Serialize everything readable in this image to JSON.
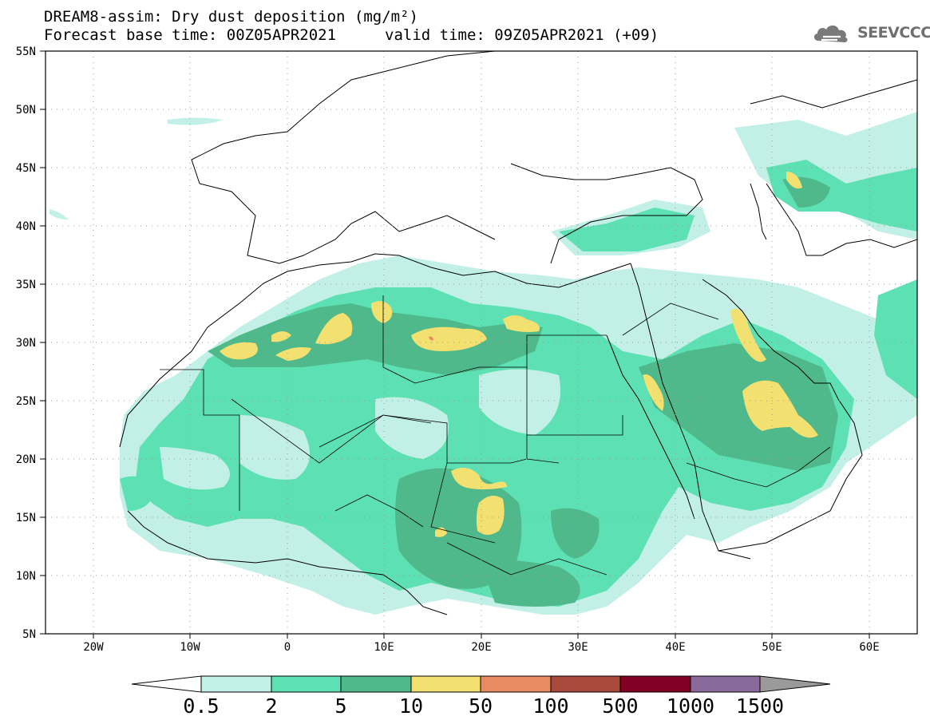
{
  "title": {
    "line1": "DREAM8-assim: Dry dust deposition (mg/m²)",
    "line2_left": "Forecast base time: 00Z05APR2021",
    "line2_right": "valid time: 09Z05APR2021 (+09)"
  },
  "logo": {
    "text": "SEEVCCC",
    "icon": "cloud-logo-icon"
  },
  "map": {
    "projection": "lat-lon",
    "lon_range": [
      -25,
      65
    ],
    "lat_range": [
      5,
      55
    ],
    "lat_ticks": [
      "5N",
      "10N",
      "15N",
      "20N",
      "25N",
      "30N",
      "35N",
      "40N",
      "45N",
      "50N",
      "55N"
    ],
    "lon_ticks": [
      "20W",
      "10W",
      "0",
      "10E",
      "20E",
      "30E",
      "40E",
      "50E",
      "60E"
    ],
    "grid": "dotted"
  },
  "colorbar": {
    "thresholds": [
      "0.5",
      "2",
      "5",
      "10",
      "50",
      "100",
      "500",
      "1000",
      "1500"
    ],
    "colors": [
      "#c2f0e6",
      "#5de0b3",
      "#4fb98c",
      "#f2e070",
      "#e98b62",
      "#a94a3c",
      "#800026",
      "#8a6a9a",
      "#9a9a9a"
    ]
  },
  "legend_colors": {
    "c1": "#c2f0e6",
    "c2": "#5de0b3",
    "c3": "#4fb98c",
    "c4": "#f2e070",
    "c5": "#e98b62"
  }
}
